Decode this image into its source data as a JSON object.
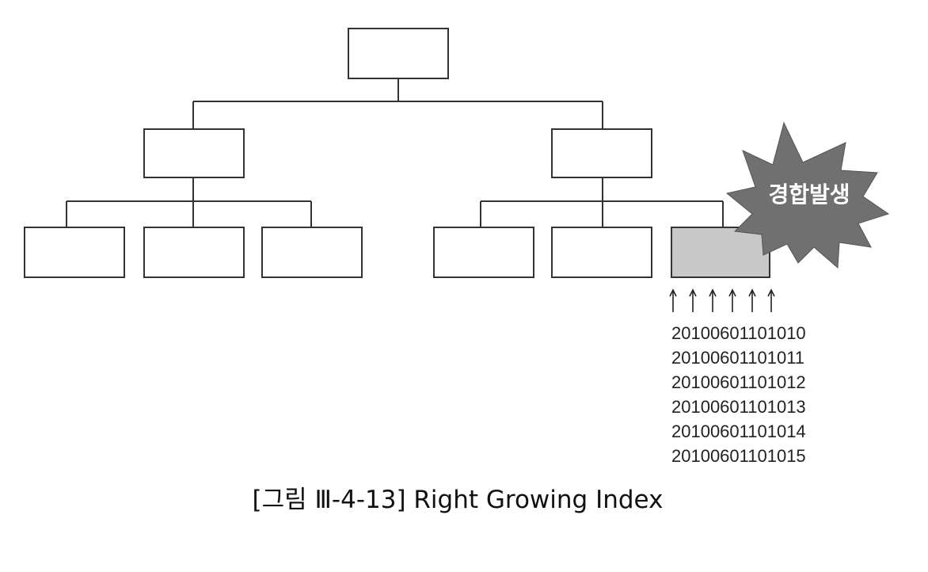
{
  "callout": {
    "label": "경합발생"
  },
  "keys": [
    "20100601101010",
    "20100601101011",
    "20100601101012",
    "20100601101013",
    "20100601101014",
    "20100601101015"
  ],
  "caption": "[그림 Ⅲ-4-13] Right Growing Index",
  "colors": {
    "hot_leaf": "#c8c8c8",
    "burst": "#707070"
  }
}
